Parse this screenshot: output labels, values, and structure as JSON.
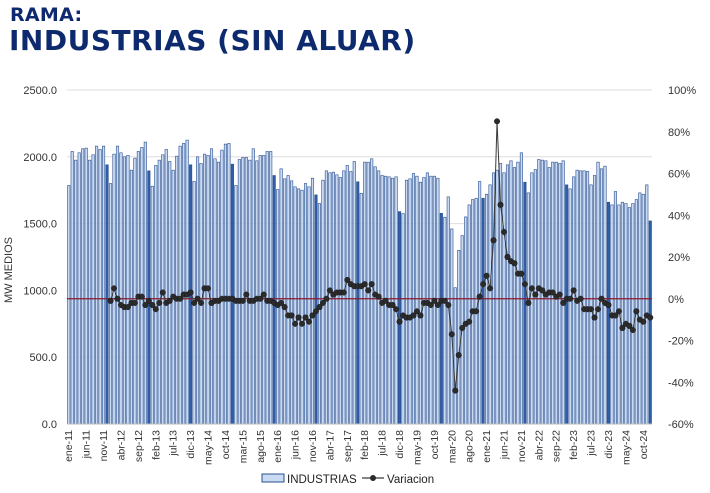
{
  "header": {
    "line1": "RAMA:",
    "line2": "INDUSTRIAS (SIN ALUAR)"
  },
  "chart_data": {
    "type": "bar+line",
    "title": "RAMA: INDUSTRIAS (SIN ALUAR)",
    "ylabel": "MW MEDIOS",
    "ylim": [
      0,
      2500
    ],
    "y2lim": [
      -0.6,
      1.0
    ],
    "y_ticks": [
      "0.0",
      "500.0",
      "1000.0",
      "1500.0",
      "2000.0",
      "2500.0"
    ],
    "y2_ticks": [
      "-60%",
      "-40%",
      "-20%",
      "0%",
      "20%",
      "40%",
      "60%",
      "80%",
      "100%"
    ],
    "grid": true,
    "start_month": "ene-11",
    "end_month": "dic-24",
    "x_tick_labels": [
      "ene-11",
      "jun-11",
      "nov-11",
      "abr-12",
      "sep-12",
      "feb-13",
      "jul-13",
      "dic-13",
      "may-14",
      "oct-14",
      "mar-15",
      "ago-15",
      "ene-16",
      "jun-16",
      "nov-16",
      "abr-17",
      "sep-17",
      "feb-18",
      "jul-18",
      "dic-18",
      "may-19",
      "oct-19",
      "mar-20",
      "ago-20",
      "ene-21",
      "jun-21",
      "nov-21",
      "abr-22",
      "sep-22",
      "feb-23",
      "jul-23",
      "dic-23",
      "may-24",
      "oct-24"
    ],
    "legend": {
      "position": "bottom",
      "entries": [
        "INDUSTRIAS",
        "Variacion"
      ]
    },
    "series": [
      {
        "name": "INDUSTRIAS",
        "type": "bar",
        "values": [
          1785,
          2040,
          1975,
          2030,
          2060,
          2065,
          1975,
          2015,
          2080,
          2055,
          2080,
          1940,
          1800,
          2020,
          2080,
          2030,
          2000,
          2010,
          1900,
          1990,
          2040,
          2070,
          2110,
          1895,
          1780,
          1935,
          1975,
          2015,
          2055,
          1965,
          1900,
          2005,
          2080,
          2100,
          2125,
          1940,
          1815,
          2000,
          1950,
          2020,
          2010,
          2060,
          1985,
          1960,
          2050,
          2095,
          2100,
          1945,
          1785,
          1980,
          1995,
          1995,
          1975,
          2060,
          1970,
          2010,
          2010,
          2040,
          2040,
          1860,
          1755,
          1910,
          1835,
          1860,
          1820,
          1775,
          1760,
          1750,
          1800,
          1775,
          1840,
          1715,
          1650,
          1825,
          1895,
          1880,
          1885,
          1865,
          1845,
          1895,
          1935,
          1890,
          1965,
          1813,
          1727,
          1960,
          1960,
          1985,
          1925,
          1895,
          1860,
          1855,
          1850,
          1840,
          1850,
          1590,
          1575,
          1825,
          1835,
          1875,
          1855,
          1810,
          1845,
          1880,
          1855,
          1855,
          1840,
          1577,
          1548,
          1700,
          1460,
          1020,
          1300,
          1410,
          1550,
          1640,
          1680,
          1690,
          1815,
          1690,
          1720,
          1790,
          1880,
          1900,
          1950,
          1880,
          1940,
          1970,
          1920,
          1960,
          2030,
          1810,
          1730,
          1880,
          1905,
          1980,
          1975,
          1970,
          1920,
          1960,
          1960,
          1950,
          1970,
          1790,
          1760,
          1850,
          1900,
          1895,
          1895,
          1890,
          1790,
          1860,
          1960,
          1910,
          1930,
          1660,
          1640,
          1740,
          1640,
          1660,
          1650,
          1620,
          1650,
          1680,
          1730,
          1720,
          1790,
          1520
        ]
      },
      {
        "name": "Variacion",
        "type": "line",
        "start": "ene-12",
        "values": [
          -0.01,
          0.05,
          0.0,
          -0.03,
          -0.04,
          -0.04,
          -0.02,
          -0.02,
          0.01,
          0.01,
          -0.03,
          -0.01,
          -0.03,
          -0.05,
          -0.02,
          0.03,
          -0.02,
          -0.01,
          0.01,
          0.0,
          0.0,
          0.02,
          0.02,
          0.03,
          -0.02,
          0.0,
          -0.02,
          0.05,
          0.05,
          -0.02,
          -0.01,
          -0.01,
          0.0,
          0.0,
          0.0,
          0.0,
          -0.01,
          -0.01,
          -0.01,
          0.02,
          -0.01,
          -0.01,
          0.0,
          0.0,
          0.02,
          -0.01,
          -0.01,
          -0.02,
          -0.03,
          -0.02,
          -0.04,
          -0.08,
          -0.08,
          -0.12,
          -0.09,
          -0.12,
          -0.09,
          -0.11,
          -0.08,
          -0.06,
          -0.04,
          -0.02,
          0.0,
          0.04,
          0.02,
          0.03,
          0.03,
          0.03,
          0.09,
          0.07,
          0.06,
          0.06,
          0.06,
          0.07,
          0.04,
          0.07,
          0.02,
          0.01,
          -0.02,
          -0.01,
          -0.03,
          -0.03,
          -0.05,
          -0.11,
          -0.08,
          -0.09,
          -0.09,
          -0.08,
          -0.06,
          -0.08,
          -0.02,
          -0.02,
          -0.03,
          -0.01,
          -0.03,
          -0.01,
          -0.01,
          -0.03,
          -0.17,
          -0.44,
          -0.27,
          -0.14,
          -0.12,
          -0.11,
          -0.06,
          -0.06,
          0.01,
          0.07,
          0.11,
          0.05,
          0.28,
          0.85,
          0.45,
          0.32,
          0.2,
          0.18,
          0.17,
          0.12,
          0.12,
          0.07,
          -0.02,
          0.05,
          0.02,
          0.05,
          0.04,
          0.02,
          0.03,
          0.03,
          0.01,
          0.02,
          -0.02,
          0.0,
          0.0,
          0.04,
          -0.01,
          0.0,
          -0.05,
          -0.05,
          -0.05,
          -0.09,
          -0.05,
          0.0,
          -0.02,
          -0.03,
          -0.08,
          -0.08,
          -0.06,
          -0.14,
          -0.12,
          -0.13,
          -0.15,
          -0.06,
          -0.1,
          -0.11,
          -0.08,
          -0.09
        ]
      }
    ],
    "reference_line": {
      "value": 0,
      "axis": "y2"
    },
    "colors": {
      "bar": "#c9daf2",
      "bar_edge": "#2a4f8f",
      "bar_dec": "#2f5fa8",
      "line": "#3a3a3a",
      "marker": "#2b2b2b",
      "ref_line": "#8b1a2b",
      "title": "#0d2a6e"
    }
  }
}
